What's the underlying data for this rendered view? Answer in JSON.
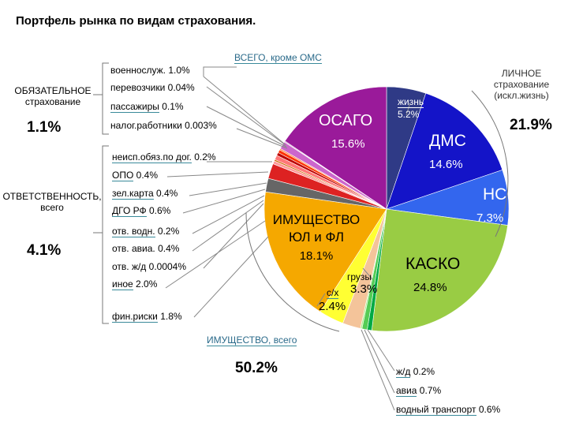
{
  "title": "Портфель рынка по видам страхования.",
  "groups": {
    "mandatory": {
      "label": "ОБЯЗАТЕЛЬНОЕ страхование",
      "total": "1.1%"
    },
    "liability": {
      "label": "ОТВЕТСТВЕННОСТЬ, всего",
      "total": "4.1%"
    },
    "personal": {
      "label": "ЛИЧНОЕ страхование (искл.жизнь)",
      "total": "21.9%"
    },
    "property": {
      "label": "ИМУЩЕСТВО, всего",
      "total": "50.2%"
    },
    "all_except": {
      "label": "ВСЕГО, кроме ОМС"
    }
  },
  "chart_data": {
    "type": "pie",
    "title": "Портфель рынка по видам страхования.",
    "unit": "%",
    "slices": [
      {
        "name": "жизнь",
        "value": 5.2,
        "color": "#2f3a86"
      },
      {
        "name": "ДМС",
        "value": 14.6,
        "color": "#1414c8"
      },
      {
        "name": "НС",
        "value": 7.3,
        "color": "#3366ee"
      },
      {
        "name": "КАСКО",
        "value": 24.8,
        "color": "#99cc44"
      },
      {
        "name": "водный транспорт",
        "value": 0.6,
        "color": "#00aa44"
      },
      {
        "name": "авиа",
        "value": 0.7,
        "color": "#55cc55"
      },
      {
        "name": "ж/д",
        "value": 0.2,
        "color": "#aaee88"
      },
      {
        "name": "с/х",
        "value": 2.4,
        "color": "#f4c49a"
      },
      {
        "name": "грузы",
        "value": 3.3,
        "color": "#ffff33"
      },
      {
        "name": "ИМУЩЕСТВО ЮЛ и ФЛ",
        "value": 18.1,
        "color": "#f5a800"
      },
      {
        "name": "фин.риски",
        "value": 1.8,
        "color": "#666666"
      },
      {
        "name": "иное",
        "value": 2.0,
        "color": "#dd2222"
      },
      {
        "name": "отв. ж/д",
        "value": 0.0004,
        "color": "#996633"
      },
      {
        "name": "отв. авиа.",
        "value": 0.4,
        "color": "#ff9999"
      },
      {
        "name": "отв. водн.",
        "value": 0.2,
        "color": "#cc6600"
      },
      {
        "name": "ДГО РФ",
        "value": 0.6,
        "color": "#ff7777"
      },
      {
        "name": "зел.карта",
        "value": 0.4,
        "color": "#bb0000"
      },
      {
        "name": "ОПО",
        "value": 0.4,
        "color": "#ff3300"
      },
      {
        "name": "неисп.обяз.по дог.",
        "value": 0.2,
        "color": "#ff8844"
      },
      {
        "name": "военнослуж.",
        "value": 1.0,
        "color": "#cc66cc"
      },
      {
        "name": "перевозчики",
        "value": 0.04,
        "color": "#ee99ee"
      },
      {
        "name": "пассажиры",
        "value": 0.1,
        "color": "#993399"
      },
      {
        "name": "налог.работники",
        "value": 0.003,
        "color": "#663366"
      },
      {
        "name": "ОСАГО",
        "value": 15.6,
        "color": "#9a1a9a"
      }
    ]
  },
  "labels": {
    "osago": {
      "name": "ОСАГО",
      "value": "15.6%"
    },
    "life": {
      "name": "жизнь",
      "value": "5.2%"
    },
    "dms": {
      "name": "ДМС",
      "value": "14.6%"
    },
    "ns": {
      "name": "НС",
      "value": "7.3%"
    },
    "kasko": {
      "name": "КАСКО",
      "value": "24.8%"
    },
    "property": {
      "line1": "ИМУЩЕСТВО",
      "line2": "ЮЛ и ФЛ",
      "value": "18.1%"
    },
    "cargo": {
      "name": "грузы",
      "value": "3.3%"
    },
    "agri": {
      "name": "с/х",
      "value": "2.4%"
    }
  },
  "callouts": {
    "voennosluzh": {
      "name": "военнослуж.",
      "value": "1.0%"
    },
    "perevozchiki": {
      "name": "перевозчики",
      "value": "0.04%"
    },
    "passazhiry": {
      "name": "пассажиры",
      "value": "0.1%"
    },
    "nalog": {
      "name": "налог.работники",
      "value": "0.003%"
    },
    "neisp": {
      "name": "неисп.обяз.по дог.",
      "value": "0.2%"
    },
    "opo": {
      "name": "ОПО",
      "value": "0.4%"
    },
    "zelkarta": {
      "name": "зел.карта",
      "value": "0.4%"
    },
    "dgo": {
      "name": "ДГО РФ",
      "value": "0.6%"
    },
    "otv_vodn": {
      "name": "отв. водн.",
      "value": "0.2%"
    },
    "otv_avia": {
      "name": "отв. авиа.",
      "value": "0.4%"
    },
    "otv_zhd": {
      "name": "отв. ж/д",
      "value": "0.0004%"
    },
    "inoe": {
      "name": "иное",
      "value": "2.0%"
    },
    "finriski": {
      "name": "фин.риски",
      "value": "1.8%"
    },
    "zhd": {
      "name": "ж/д",
      "value": "0.2%"
    },
    "avia": {
      "name": "авиа",
      "value": "0.7%"
    },
    "vodny": {
      "name": "водный транспорт",
      "value": "0.6%"
    }
  }
}
